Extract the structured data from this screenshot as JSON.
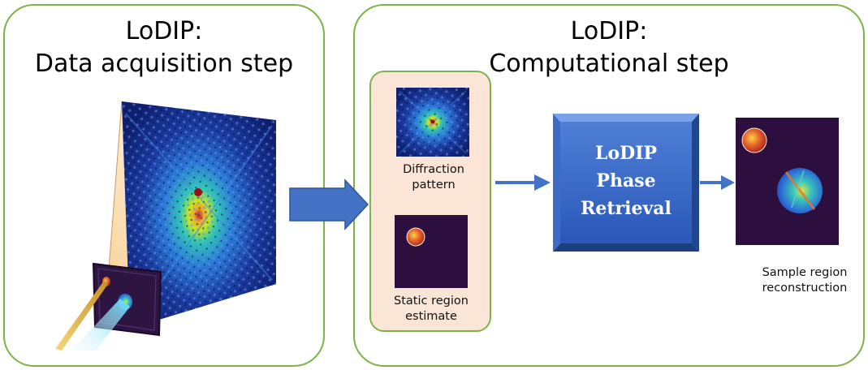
{
  "left_panel": {
    "title_line1": "LoDIP:",
    "title_line2": "Data acquisition step"
  },
  "right_panel": {
    "title_line1": "LoDIP:",
    "title_line2": "Computational step"
  },
  "inputs": {
    "diffraction_label_line1": "Diffraction",
    "diffraction_label_line2": "pattern",
    "static_label_line1": "Static region",
    "static_label_line2": "estimate"
  },
  "process_block": {
    "line1": "LoDIP",
    "line2": "Phase",
    "line3": "Retrieval"
  },
  "output": {
    "label_line1": "Sample region",
    "label_line2": "reconstruction"
  },
  "colors": {
    "panel_border": "#7db24a",
    "subbox_fill": "#fbe5d6",
    "arrow": "#4472c4",
    "block": "#2f5597",
    "image_background": "#2d0f3f"
  }
}
